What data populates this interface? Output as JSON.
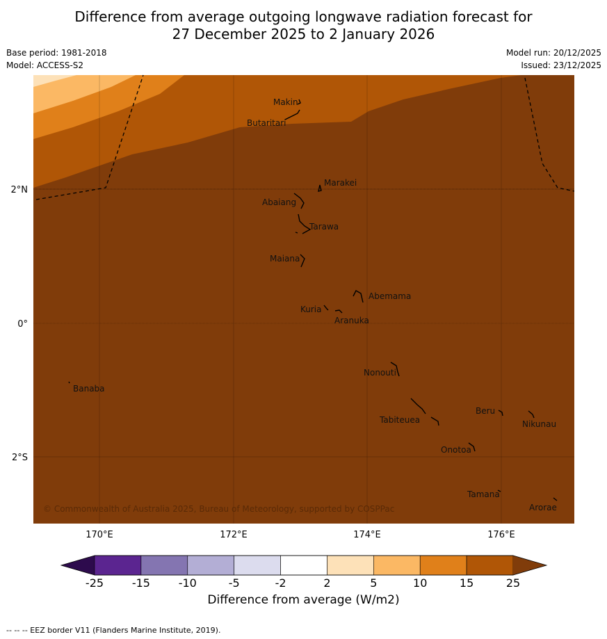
{
  "title_line1": "Difference from average outgoing longwave radiation forecast for",
  "title_line2": "27 December 2025 to 2 January 2026",
  "base_period": "Base period: 1981-2018",
  "model": "Model: ACCESS-S2",
  "model_run": "Model run: 20/12/2025",
  "issued": "Issued: 23/12/2025",
  "copyright": "© Commonwealth of Australia 2025, Bureau of Meteorology, supported by COSPPac",
  "lon_labels": [
    "170°E",
    "172°E",
    "174°E",
    "176°E"
  ],
  "lat_labels": [
    "2°N",
    "0°",
    "2°S"
  ],
  "places": [
    "Makin",
    "Butaritari",
    "Marakei",
    "Abaiang",
    "Tarawa",
    "Maiana",
    "Abemama",
    "Kuria",
    "Aranuka",
    "Nonouti",
    "Banaba",
    "Beru",
    "Nikunau",
    "Tabiteuea",
    "Onotoa",
    "Tamana",
    "Arorae"
  ],
  "colorbar": {
    "ticks": [
      "-25",
      "-15",
      "-10",
      "-5",
      "-2",
      "2",
      "5",
      "10",
      "15",
      "25"
    ],
    "colors": [
      "#5b2590",
      "#8475b1",
      "#b3aed5",
      "#dcdcee",
      "#ffffff",
      "#fde1b8",
      "#fbb864",
      "#e0801a",
      "#b05606"
    ],
    "under_color": "#2d0b4d",
    "over_color": "#803c0a",
    "title": "Difference from average (W/m2)"
  },
  "map_colors": {
    "bin_15_25": "#b05606",
    "bin_over_25": "#803c0a",
    "bin_10_15": "#e0801a",
    "bin_5_10": "#fbb864",
    "bin_2_5": "#fde1b8"
  },
  "footer": "--  --  -- EEZ border V11 (Flanders Marine Institute, 2019)."
}
